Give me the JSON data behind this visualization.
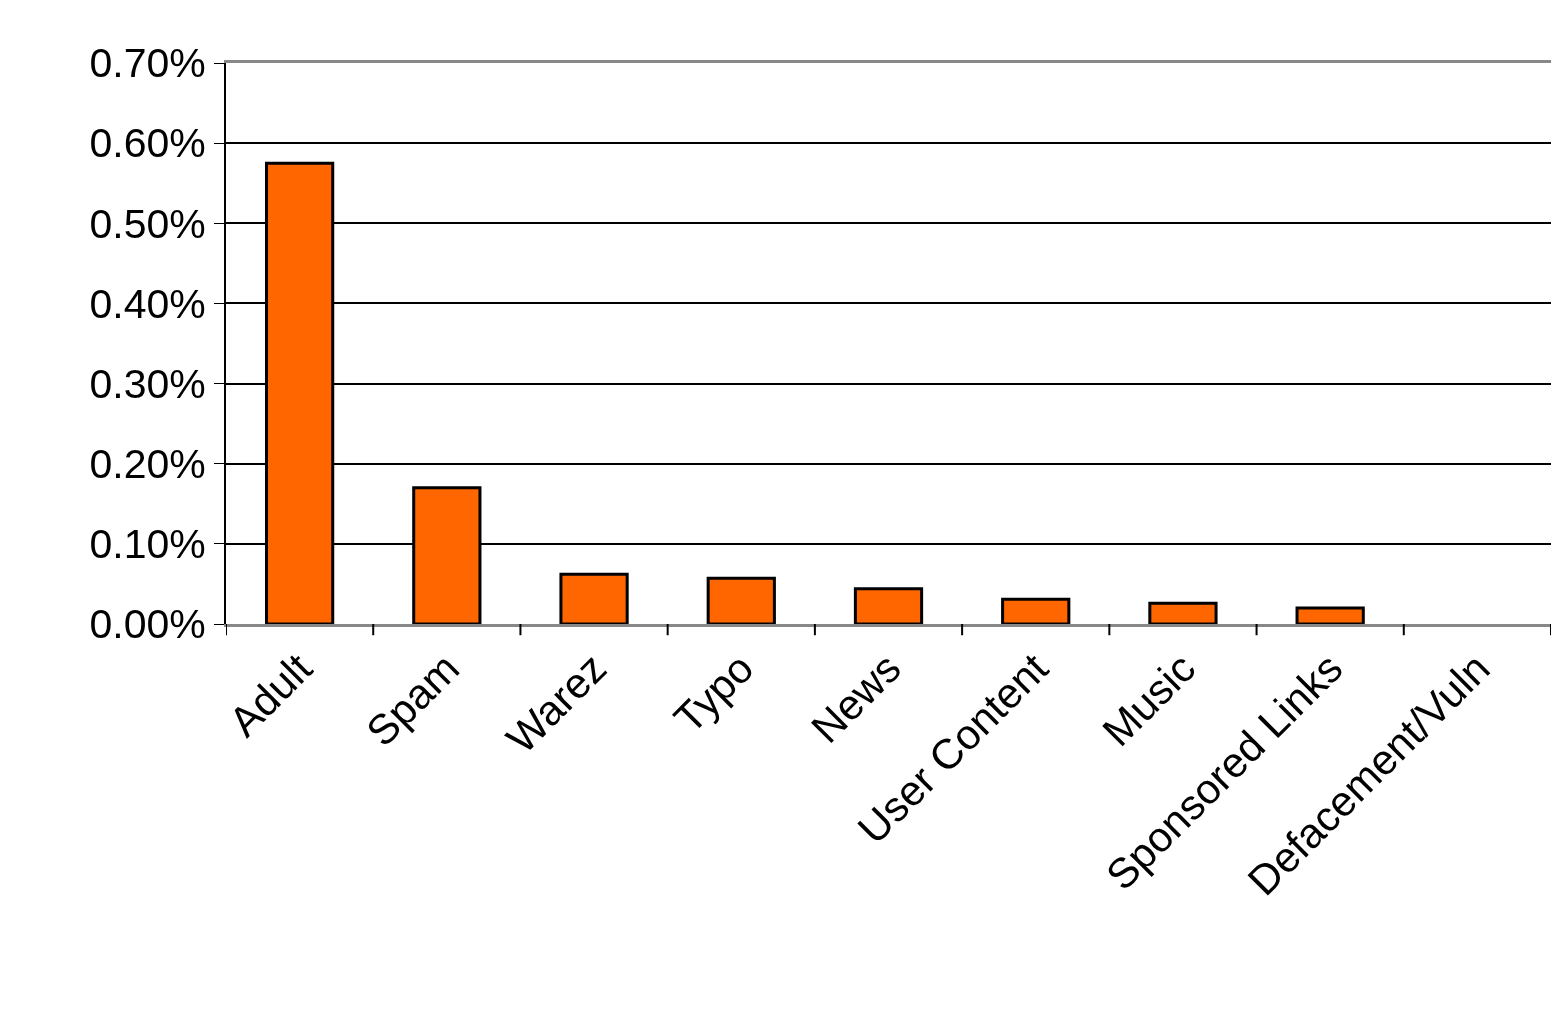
{
  "chart_data": {
    "type": "bar",
    "categories": [
      "Adult",
      "Spam",
      "Warez",
      "Typo",
      "News",
      "User Content",
      "Music",
      "Sponsored Links",
      "Defacement/Vuln"
    ],
    "values": [
      0.575,
      0.17,
      0.062,
      0.057,
      0.044,
      0.031,
      0.026,
      0.02,
      null
    ],
    "color": "#ff6600",
    "ylim": [
      0,
      0.7
    ],
    "yticks": [
      {
        "value": 0,
        "label": "0.00%"
      },
      {
        "value": 0.1,
        "label": "0.10%"
      },
      {
        "value": 0.2,
        "label": "0.20%"
      },
      {
        "value": 0.3,
        "label": "0.30%"
      },
      {
        "value": 0.4,
        "label": "0.40%"
      },
      {
        "value": 0.5,
        "label": "0.50%"
      },
      {
        "value": 0.6,
        "label": "0.60%"
      },
      {
        "value": 0.7,
        "label": "0.70%"
      }
    ],
    "grid": "y"
  }
}
